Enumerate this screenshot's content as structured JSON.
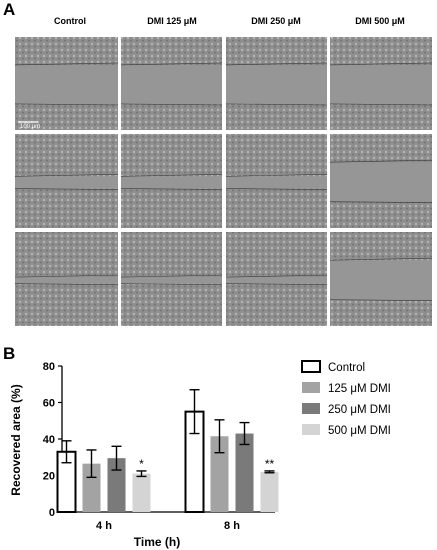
{
  "panel_a": {
    "letter": "A",
    "columns": [
      "Control",
      "DMI 125 μM",
      "DMI 250 μM",
      "DMI 500 μM"
    ],
    "scale_bar_label": "100 μm"
  },
  "panel_b": {
    "letter": "B"
  },
  "colors": {
    "control": "#ffffff",
    "dmi125": "#a3a3a3",
    "dmi250": "#7a7a7a",
    "dmi500": "#d4d4d4",
    "stroke": "#000000"
  },
  "chart_data": {
    "type": "bar",
    "xlabel": "Time (h)",
    "ylabel": "Recovered area (%)",
    "ylim": [
      0,
      80
    ],
    "yticks": [
      0,
      20,
      40,
      60,
      80
    ],
    "categories": [
      "4 h",
      "8 h"
    ],
    "legend_position": "right",
    "series": [
      {
        "name": "Control",
        "values": [
          33,
          55
        ],
        "errors": [
          6,
          12
        ],
        "sig": [
          "",
          ""
        ]
      },
      {
        "name": "125 μM DMI",
        "values": [
          26.5,
          41.5
        ],
        "errors": [
          7.5,
          9
        ],
        "sig": [
          "",
          ""
        ]
      },
      {
        "name": "250 μM DMI",
        "values": [
          29.5,
          43
        ],
        "errors": [
          6.5,
          6
        ],
        "sig": [
          "",
          ""
        ]
      },
      {
        "name": "500 μM DMI",
        "values": [
          21,
          22
        ],
        "errors": [
          1.5,
          0.5
        ],
        "sig": [
          "*",
          "**"
        ]
      }
    ]
  }
}
